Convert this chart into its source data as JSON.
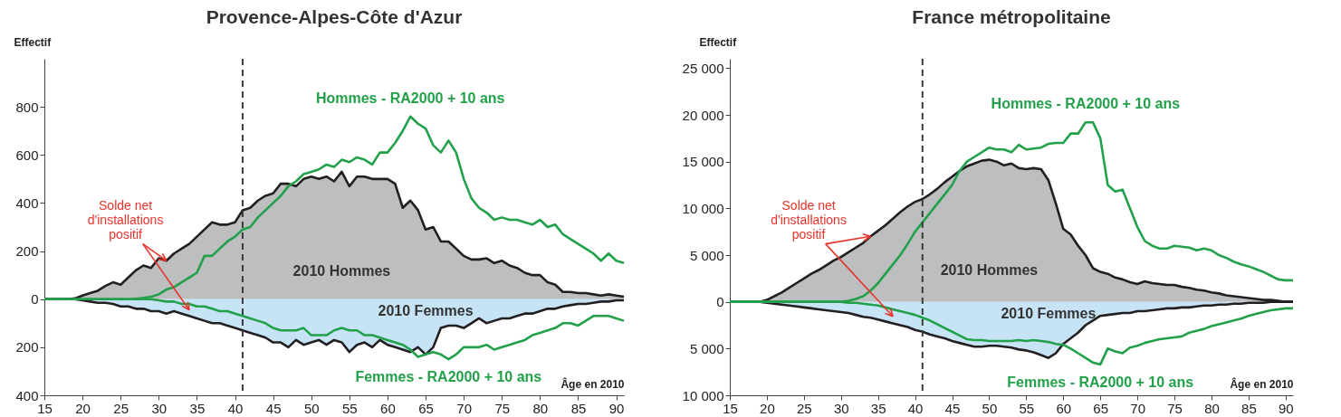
{
  "chart_data": [
    {
      "type": "area",
      "title": "Provence-Alpes-Côte d'Azur",
      "xlabel": "Âge en 2010",
      "ylabel": "Effectif",
      "x": [
        15,
        16,
        17,
        18,
        19,
        20,
        21,
        22,
        23,
        24,
        25,
        26,
        27,
        28,
        29,
        30,
        31,
        32,
        33,
        34,
        35,
        36,
        37,
        38,
        39,
        40,
        41,
        42,
        43,
        44,
        45,
        46,
        47,
        48,
        49,
        50,
        51,
        52,
        53,
        54,
        55,
        56,
        57,
        58,
        59,
        60,
        61,
        62,
        63,
        64,
        65,
        66,
        67,
        68,
        69,
        70,
        71,
        72,
        73,
        74,
        75,
        76,
        77,
        78,
        79,
        80,
        81,
        82,
        83,
        84,
        85,
        86,
        87,
        88,
        89,
        90,
        91
      ],
      "xlim": [
        15,
        91
      ],
      "xticks": [
        15,
        20,
        25,
        30,
        35,
        40,
        45,
        50,
        55,
        60,
        65,
        70,
        75,
        80,
        85,
        90
      ],
      "ylim": [
        -400,
        1000
      ],
      "yticks": [
        {
          "value": -400,
          "label": "400"
        },
        {
          "value": -200,
          "label": "200"
        },
        0,
        200,
        400,
        600,
        800
      ],
      "series": [
        {
          "name": "2010 Hommes",
          "color": "#bcbec0",
          "values": [
            0,
            0,
            0,
            0,
            3,
            15,
            25,
            35,
            55,
            70,
            60,
            90,
            120,
            140,
            130,
            170,
            160,
            190,
            210,
            230,
            260,
            290,
            320,
            310,
            310,
            320,
            370,
            380,
            410,
            430,
            440,
            480,
            480,
            470,
            500,
            510,
            500,
            510,
            490,
            530,
            470,
            510,
            510,
            500,
            500,
            500,
            480,
            380,
            410,
            370,
            290,
            300,
            240,
            240,
            210,
            180,
            165,
            165,
            170,
            150,
            160,
            140,
            130,
            110,
            100,
            100,
            70,
            60,
            30,
            30,
            25,
            25,
            20,
            15,
            20,
            15,
            10
          ]
        },
        {
          "name": "2010 Femmes",
          "color": "#c6e4f5",
          "values": [
            0,
            0,
            0,
            0,
            0,
            -5,
            -10,
            -15,
            -15,
            -20,
            -30,
            -30,
            -40,
            -40,
            -50,
            -50,
            -60,
            -50,
            -60,
            -70,
            -80,
            -90,
            -100,
            -100,
            -110,
            -120,
            -130,
            -140,
            -150,
            -160,
            -180,
            -180,
            -200,
            -170,
            -190,
            -180,
            -170,
            -190,
            -170,
            -180,
            -220,
            -190,
            -180,
            -200,
            -170,
            -190,
            -200,
            -210,
            -220,
            -200,
            -230,
            -200,
            -120,
            -110,
            -110,
            -120,
            -100,
            -80,
            -100,
            -90,
            -80,
            -80,
            -70,
            -60,
            -60,
            -50,
            -40,
            -40,
            -30,
            -25,
            -20,
            -20,
            -15,
            -10,
            -10,
            -5,
            -5
          ]
        },
        {
          "name": "Hommes - RA2000 + 10 ans",
          "type": "line",
          "color": "#22a04a",
          "values": [
            0,
            0,
            0,
            0,
            0,
            0,
            0,
            0,
            0,
            0,
            0,
            0,
            2,
            5,
            10,
            20,
            40,
            50,
            70,
            90,
            110,
            180,
            180,
            210,
            240,
            260,
            290,
            300,
            340,
            370,
            400,
            430,
            470,
            490,
            520,
            530,
            540,
            560,
            550,
            580,
            570,
            590,
            580,
            560,
            610,
            610,
            650,
            700,
            760,
            730,
            710,
            640,
            610,
            660,
            610,
            500,
            420,
            380,
            360,
            330,
            340,
            330,
            330,
            320,
            310,
            330,
            300,
            310,
            270,
            250,
            230,
            210,
            190,
            160,
            190,
            160,
            150
          ]
        },
        {
          "name": "Femmes - RA2000 + 10 ans",
          "type": "line",
          "color": "#22a04a",
          "values": [
            0,
            0,
            0,
            0,
            0,
            0,
            0,
            0,
            0,
            0,
            0,
            0,
            0,
            0,
            0,
            -5,
            -10,
            -10,
            -20,
            -20,
            -30,
            -30,
            -40,
            -50,
            -50,
            -60,
            -70,
            -80,
            -90,
            -100,
            -120,
            -130,
            -130,
            -130,
            -120,
            -150,
            -150,
            -150,
            -130,
            -120,
            -130,
            -130,
            -150,
            -150,
            -160,
            -170,
            -180,
            -190,
            -210,
            -240,
            -230,
            -220,
            -230,
            -250,
            -230,
            -200,
            -200,
            -200,
            -190,
            -210,
            -200,
            -190,
            -180,
            -170,
            -150,
            -140,
            -130,
            -120,
            -100,
            -100,
            -110,
            -90,
            -70,
            -70,
            -70,
            -80,
            -90
          ]
        }
      ],
      "ref_lines": [
        {
          "axis": "x",
          "value": 41,
          "line_style": "dashed"
        }
      ],
      "annotations": [
        {
          "text": "Solde net\nd'installations\npositif",
          "x": 31,
          "y": 160
        }
      ]
    },
    {
      "type": "area",
      "title": "France métropolitaine",
      "xlabel": "Âge en 2010",
      "ylabel": "Effectif",
      "x": [
        15,
        16,
        17,
        18,
        19,
        20,
        21,
        22,
        23,
        24,
        25,
        26,
        27,
        28,
        29,
        30,
        31,
        32,
        33,
        34,
        35,
        36,
        37,
        38,
        39,
        40,
        41,
        42,
        43,
        44,
        45,
        46,
        47,
        48,
        49,
        50,
        51,
        52,
        53,
        54,
        55,
        56,
        57,
        58,
        59,
        60,
        61,
        62,
        63,
        64,
        65,
        66,
        67,
        68,
        69,
        70,
        71,
        72,
        73,
        74,
        75,
        76,
        77,
        78,
        79,
        80,
        81,
        82,
        83,
        84,
        85,
        86,
        87,
        88,
        89,
        90,
        91
      ],
      "xlim": [
        15,
        91
      ],
      "xticks": [
        15,
        20,
        25,
        30,
        35,
        40,
        45,
        50,
        55,
        60,
        65,
        70,
        75,
        80,
        85,
        90
      ],
      "ylim": [
        -10000,
        26000
      ],
      "yticks": [
        {
          "value": -10000,
          "label": "10 000"
        },
        {
          "value": -5000,
          "label": "5 000"
        },
        0,
        {
          "value": 5000,
          "label": "5 000"
        },
        {
          "value": 10000,
          "label": "10 000"
        },
        {
          "value": 15000,
          "label": "15 000"
        },
        {
          "value": 20000,
          "label": "20 000"
        },
        {
          "value": 25000,
          "label": "25 000"
        }
      ],
      "series": [
        {
          "name": "2010 Hommes",
          "color": "#bcbec0",
          "values": [
            0,
            0,
            0,
            0,
            0,
            200,
            600,
            1000,
            1500,
            2000,
            2500,
            3000,
            3400,
            3900,
            4400,
            4800,
            5300,
            5800,
            6300,
            7000,
            7600,
            8200,
            8900,
            9600,
            10200,
            10700,
            11000,
            11500,
            12100,
            12800,
            13400,
            14000,
            14500,
            14800,
            15100,
            15200,
            15000,
            14600,
            14800,
            14300,
            14200,
            14300,
            14200,
            13000,
            10500,
            7800,
            7200,
            6000,
            5000,
            3600,
            3200,
            3000,
            2600,
            2400,
            2100,
            1900,
            2200,
            2000,
            1900,
            1800,
            1800,
            1600,
            1500,
            1300,
            1200,
            1000,
            900,
            700,
            600,
            500,
            400,
            300,
            200,
            200,
            100,
            0,
            0
          ]
        },
        {
          "name": "2010 Femmes",
          "color": "#c6e4f5",
          "values": [
            0,
            0,
            0,
            0,
            0,
            -100,
            -200,
            -300,
            -400,
            -500,
            -600,
            -700,
            -800,
            -900,
            -1000,
            -1100,
            -1200,
            -1400,
            -1600,
            -1700,
            -1900,
            -2100,
            -2300,
            -2500,
            -2700,
            -3000,
            -3200,
            -3500,
            -3700,
            -3900,
            -4200,
            -4400,
            -4600,
            -4800,
            -4800,
            -4700,
            -4700,
            -4800,
            -4900,
            -5100,
            -5200,
            -5400,
            -5700,
            -6000,
            -5500,
            -4500,
            -3900,
            -3300,
            -2500,
            -2000,
            -1500,
            -1400,
            -1300,
            -1200,
            -1200,
            -1000,
            -1000,
            -900,
            -800,
            -700,
            -700,
            -600,
            -600,
            -500,
            -400,
            -400,
            -300,
            -300,
            -200,
            -200,
            -100,
            -100,
            -100,
            0,
            0,
            0,
            0
          ]
        },
        {
          "name": "Hommes - RA2000 + 10 ans",
          "type": "line",
          "color": "#22a04a",
          "values": [
            0,
            0,
            0,
            0,
            0,
            0,
            0,
            0,
            0,
            0,
            0,
            0,
            0,
            0,
            0,
            0,
            100,
            300,
            600,
            1200,
            2000,
            3000,
            4000,
            5000,
            6200,
            7500,
            8500,
            9500,
            10500,
            11500,
            12500,
            14000,
            15000,
            15500,
            16000,
            16500,
            16300,
            16300,
            16000,
            16800,
            16300,
            16400,
            16500,
            16900,
            17000,
            17000,
            18000,
            18000,
            19200,
            19200,
            17500,
            12500,
            11800,
            12000,
            10000,
            8000,
            6500,
            6000,
            5700,
            5700,
            6000,
            5900,
            5800,
            5500,
            5700,
            5500,
            5000,
            4700,
            4300,
            4000,
            3800,
            3500,
            3200,
            2800,
            2400,
            2300,
            2300
          ]
        },
        {
          "name": "Femmes - RA2000 + 10 ans",
          "type": "line",
          "color": "#22a04a",
          "values": [
            0,
            0,
            0,
            0,
            0,
            0,
            0,
            0,
            0,
            0,
            0,
            0,
            0,
            0,
            0,
            0,
            -100,
            -100,
            -200,
            -300,
            -400,
            -600,
            -800,
            -1000,
            -1200,
            -1400,
            -1700,
            -2000,
            -2400,
            -2800,
            -3200,
            -3600,
            -4000,
            -4100,
            -4100,
            -4200,
            -4200,
            -4200,
            -4200,
            -4100,
            -4200,
            -4100,
            -4200,
            -4300,
            -4500,
            -4600,
            -5000,
            -5500,
            -6000,
            -6500,
            -6700,
            -5000,
            -5300,
            -5500,
            -4900,
            -4700,
            -4400,
            -4200,
            -4000,
            -3900,
            -3800,
            -3700,
            -3300,
            -3100,
            -2900,
            -2600,
            -2400,
            -2200,
            -2000,
            -1800,
            -1500,
            -1300,
            -1100,
            -900,
            -800,
            -700,
            -700
          ]
        }
      ],
      "ref_lines": [
        {
          "axis": "x",
          "value": 41,
          "line_style": "dashed"
        }
      ],
      "annotations": [
        {
          "text": "Solde net\nd'installations\npositif",
          "x": 34,
          "y": 7000
        }
      ]
    }
  ]
}
